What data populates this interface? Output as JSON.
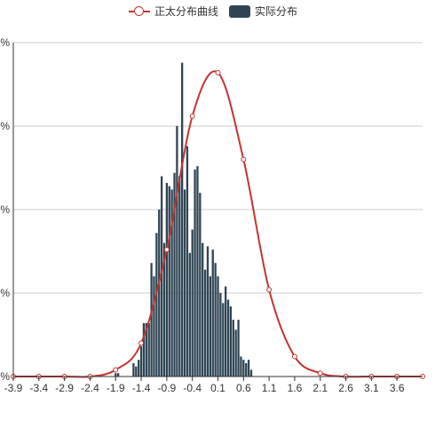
{
  "legend": {
    "line_label": "正太分布曲线",
    "bar_label": "实际分布"
  },
  "colors": {
    "line": "#c23531",
    "bar": "#2f4554",
    "grid": "#cccccc",
    "axis": "#333333"
  },
  "chart_data": {
    "type": "bar",
    "title": "",
    "xlabel": "",
    "ylabel": "",
    "grid": true,
    "legend_placement": "top-center",
    "xlim": [
      -3.9,
      4.1
    ],
    "ylim": [
      0,
      1
    ],
    "y_tick_labels": [
      "%",
      "%",
      "%",
      "%",
      "%"
    ],
    "x_tick_labels": [
      "-3.9",
      "-3.4",
      "-2.9",
      "-2.4",
      "-1.9",
      "-1.4",
      "-0.9",
      "-0.4",
      "0.1",
      "0.6",
      "1.1",
      "1.6",
      "2.1",
      "2.6",
      "3.1",
      "3.6"
    ],
    "series": [
      {
        "name": "实际分布",
        "type": "bar",
        "x": [
          -1.9,
          -1.85,
          -1.8,
          -1.75,
          -1.7,
          -1.65,
          -1.6,
          -1.55,
          -1.5,
          -1.45,
          -1.4,
          -1.35,
          -1.3,
          -1.25,
          -1.2,
          -1.15,
          -1.1,
          -1.05,
          -1.0,
          -0.95,
          -0.9,
          -0.85,
          -0.8,
          -0.75,
          -0.7,
          -0.65,
          -0.6,
          -0.55,
          -0.5,
          -0.45,
          -0.4,
          -0.35,
          -0.3,
          -0.25,
          -0.2,
          -0.15,
          -0.1,
          -0.05,
          0.0,
          0.05,
          0.1,
          0.15,
          0.2,
          0.25,
          0.3,
          0.35,
          0.4,
          0.45,
          0.5,
          0.55,
          0.6,
          0.65,
          0.7,
          0.75,
          0.8,
          0.85,
          0.9,
          0.95,
          1.0,
          1.05,
          1.1,
          1.15,
          1.2,
          1.25,
          1.3,
          1.35,
          1.4,
          1.45,
          1.5,
          1.55,
          1.6,
          1.65,
          1.7,
          1.75,
          1.8,
          1.85,
          1.9,
          1.95,
          2.0
        ],
        "values": [
          0.01,
          0.01,
          0.0,
          0.0,
          0.0,
          0.0,
          0.0,
          0.04,
          0.03,
          0.05,
          0.09,
          0.16,
          0.16,
          0.16,
          0.34,
          0.3,
          0.43,
          0.5,
          0.6,
          0.4,
          0.58,
          0.57,
          0.56,
          0.61,
          0.75,
          0.6,
          0.94,
          0.56,
          0.69,
          0.37,
          0.44,
          0.62,
          0.63,
          0.55,
          0.4,
          0.32,
          0.39,
          0.3,
          0.38,
          0.34,
          0.3,
          0.25,
          0.22,
          0.27,
          0.23,
          0.21,
          0.17,
          0.14,
          0.17,
          0.06,
          0.05,
          0.04,
          0.05,
          0.02,
          0.0,
          0.0,
          0.0,
          0.0,
          0.0,
          0.0,
          0.0,
          0.0,
          0.0,
          0.0,
          0.0,
          0.0,
          0.0,
          0.0,
          0.0,
          0.0,
          0.0,
          0.0,
          0.0,
          0.0,
          0.0,
          0.0,
          0.0,
          0.0,
          0.0
        ]
      },
      {
        "name": "正太分布曲线",
        "type": "line",
        "smooth": true,
        "x": [
          -3.9,
          -3.4,
          -2.9,
          -2.4,
          -1.9,
          -1.4,
          -0.9,
          -0.4,
          0.1,
          0.6,
          1.1,
          1.6,
          2.1,
          2.6,
          3.1,
          3.6,
          4.1
        ],
        "values": [
          0.0,
          0.0,
          0.0,
          0.0,
          0.02,
          0.1,
          0.38,
          0.78,
          0.91,
          0.65,
          0.26,
          0.06,
          0.01,
          0.0,
          0.0,
          0.0,
          0.0
        ]
      }
    ]
  }
}
